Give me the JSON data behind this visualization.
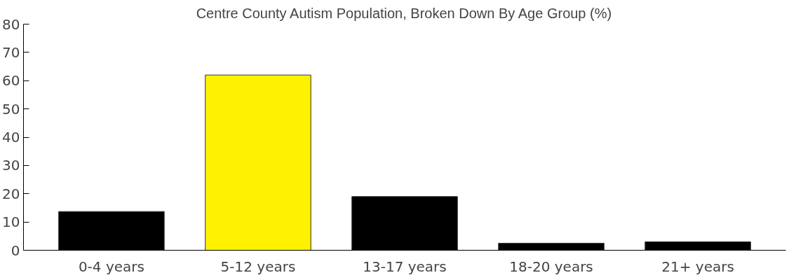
{
  "chart_data": {
    "type": "bar",
    "title": "Centre County Autism Population, Broken Down By Age Group (%)",
    "categories": [
      "0-4 years",
      "5-12 years",
      "13-17 years",
      "18-20 years",
      "21+ years"
    ],
    "values": [
      13.7,
      62,
      19,
      2.5,
      3
    ],
    "colors": [
      "#000000",
      "#fff200",
      "#000000",
      "#000000",
      "#000000"
    ],
    "ylim": [
      0,
      80
    ],
    "yticks": [
      0,
      10,
      20,
      30,
      40,
      50,
      60,
      70,
      80
    ],
    "grid": false
  }
}
